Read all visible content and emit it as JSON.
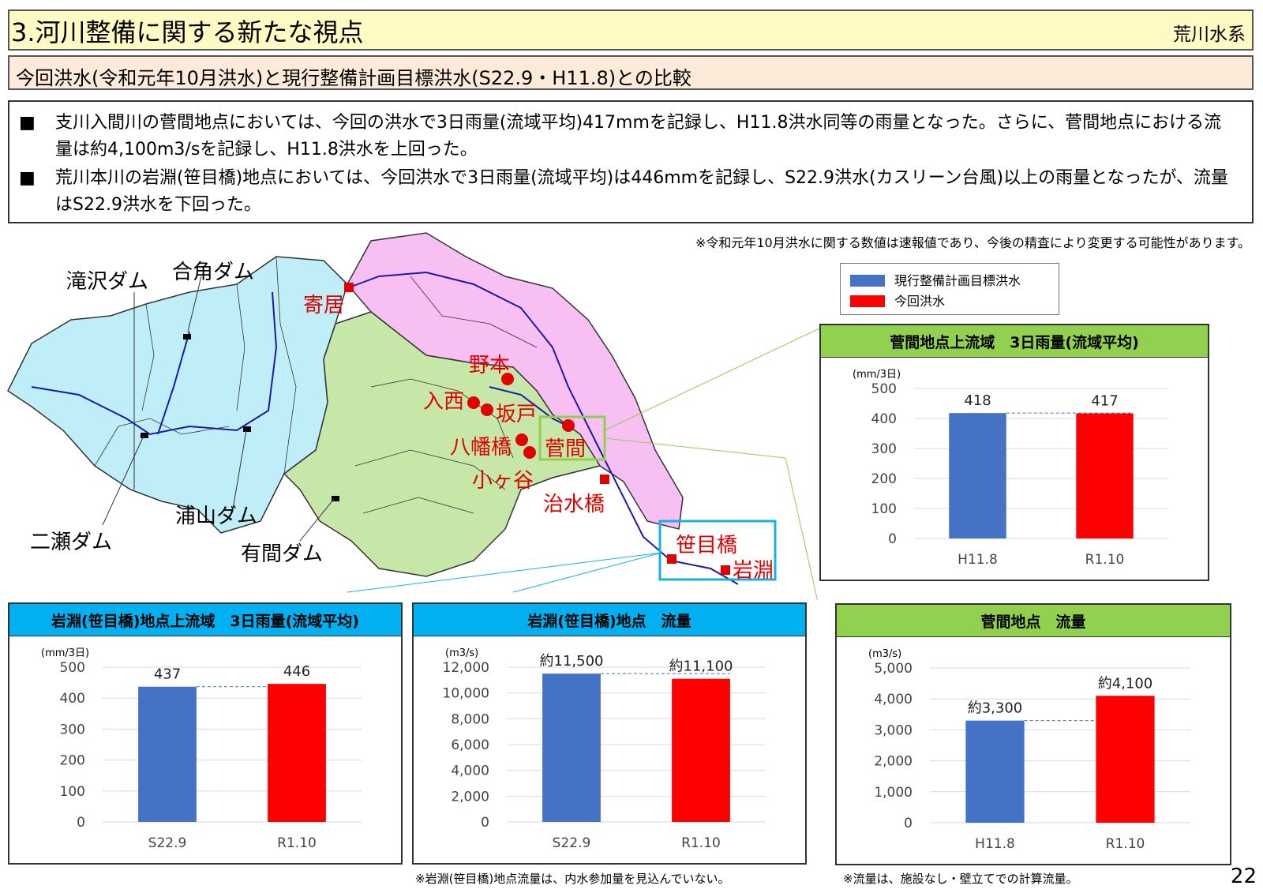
{
  "header": {
    "title": "3.河川整備に関する新たな視点",
    "system": "荒川水系"
  },
  "subtitle": "今回洪水(令和元年10月洪水)と現行整備計画目標洪水(S22.9・H11.8)との比較",
  "bullets": [
    {
      "marker": "■",
      "text": "支川入間川の菅間地点においては、今回の洪水で3日雨量(流域平均)417mmを記録し、H11.8洪水同等の雨量となった。さらに、菅間地点における流量は約4,100m3/sを記録し、H11.8洪水を上回った。"
    },
    {
      "marker": "■",
      "text": "荒川本川の岩淵(笹目橋)地点においては、今回洪水で3日雨量(流域平均)は446mmを記録し、S22.9洪水(カスリーン台風)以上の雨量となったが、流量はS22.9洪水を下回った。"
    }
  ],
  "note_top": "※令和元年10月洪水に関する数値は速報値であり、今後の精査により変更する可能性があります。",
  "legend": [
    {
      "label": "現行整備計画目標洪水",
      "color": "#4472c4"
    },
    {
      "label": "今回洪水",
      "color": "#ff0000"
    }
  ],
  "map": {
    "dams": [
      "滝沢ダム",
      "合角ダム",
      "浦山ダム",
      "二瀬ダム",
      "有間ダム"
    ],
    "points": [
      "寄居",
      "野本",
      "入西",
      "坂戸",
      "八幡橋",
      "菅間",
      "小ヶ谷",
      "治水橋",
      "笹目橋",
      "岩淵"
    ]
  },
  "chart_data": [
    {
      "id": "sugama-rain",
      "type": "bar",
      "title": "菅間地点上流域　3日雨量(流域平均)",
      "ylabel": "(mm/3日)",
      "categories": [
        "H11.8",
        "R1.10"
      ],
      "values": [
        418,
        417
      ],
      "labels": [
        "418",
        "417"
      ],
      "ylim": [
        0,
        500
      ],
      "yticks": [
        0,
        100,
        200,
        300,
        400,
        500
      ],
      "ytick_labels": [
        "0",
        "100",
        "200",
        "300",
        "400",
        "500"
      ],
      "ref_value": 418,
      "colors": [
        "#4472c4",
        "#ff0000"
      ],
      "head_color": "#92d050",
      "head_text_color": "#000000"
    },
    {
      "id": "iwabuchi-rain",
      "type": "bar",
      "title": "岩淵(笹目橋)地点上流域　3日雨量(流域平均)",
      "ylabel": "(mm/3日)",
      "categories": [
        "S22.9",
        "R1.10"
      ],
      "values": [
        437,
        446
      ],
      "labels": [
        "437",
        "446"
      ],
      "ylim": [
        0,
        500
      ],
      "yticks": [
        0,
        100,
        200,
        300,
        400,
        500
      ],
      "ytick_labels": [
        "0",
        "100",
        "200",
        "300",
        "400",
        "500"
      ],
      "ref_value": 437,
      "colors": [
        "#4472c4",
        "#ff0000"
      ],
      "head_color": "#00b0f0",
      "head_text_color": "#000000"
    },
    {
      "id": "iwabuchi-flow",
      "type": "bar",
      "title": "岩淵(笹目橋)地点　流量",
      "ylabel": "(m3/s)",
      "categories": [
        "S22.9",
        "R1.10"
      ],
      "values": [
        11500,
        11100
      ],
      "labels": [
        "約11,500",
        "約11,100"
      ],
      "ylim": [
        0,
        12000
      ],
      "yticks": [
        0,
        2000,
        4000,
        6000,
        8000,
        10000,
        12000
      ],
      "ytick_labels": [
        "0",
        "2,000",
        "4,000",
        "6,000",
        "8,000",
        "10,000",
        "12,000"
      ],
      "ref_value": 11500,
      "colors": [
        "#4472c4",
        "#ff0000"
      ],
      "head_color": "#00b0f0",
      "head_text_color": "#000000"
    },
    {
      "id": "sugama-flow",
      "type": "bar",
      "title": "菅間地点　流量",
      "ylabel": "(m3/s)",
      "categories": [
        "H11.8",
        "R1.10"
      ],
      "values": [
        3300,
        4100
      ],
      "labels": [
        "約3,300",
        "約4,100"
      ],
      "ylim": [
        0,
        5000
      ],
      "yticks": [
        0,
        1000,
        2000,
        3000,
        4000,
        5000
      ],
      "ytick_labels": [
        "0",
        "1,000",
        "2,000",
        "3,000",
        "4,000",
        "5,000"
      ],
      "ref_value": 3300,
      "colors": [
        "#4472c4",
        "#ff0000"
      ],
      "head_color": "#92d050",
      "head_text_color": "#000000"
    }
  ],
  "footnotes": {
    "iwabuchi": "※岩淵(笹目橋)地点流量は、内水参加量を見込んでいない。",
    "sugama": "※流量は、施設なし・壁立てでの計算流量。"
  },
  "page_number": "22"
}
